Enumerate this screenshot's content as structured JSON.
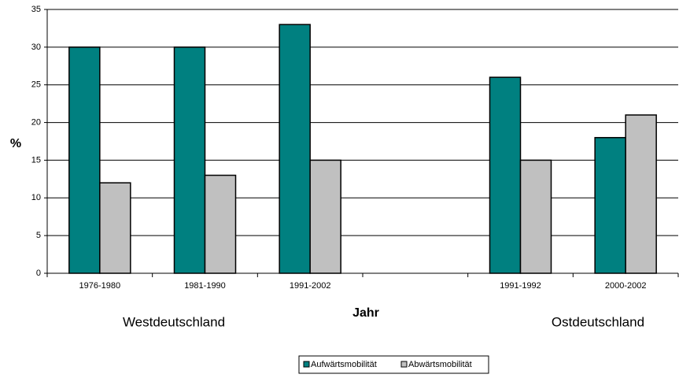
{
  "chart_data": {
    "type": "bar",
    "x_label": "Jahr",
    "y_label": "%",
    "categories": [
      "1976-1980",
      "1981-1990",
      "1991-2002",
      null,
      "1991-1992",
      "2000-2002"
    ],
    "series": [
      {
        "name": "Aufwärtsmobilität",
        "color": "#008080",
        "values": [
          30,
          30,
          33,
          null,
          26,
          18
        ]
      },
      {
        "name": "Abwärtsmobilität",
        "color": "#c0c0c0",
        "values": [
          12,
          13,
          15,
          null,
          15,
          21
        ]
      }
    ],
    "annotations": [
      "Westdeutschland",
      "Ostdeutschland"
    ],
    "ylim": [
      0,
      35
    ],
    "yticks": [
      0,
      5,
      10,
      15,
      20,
      25,
      30,
      35
    ],
    "grid": true,
    "legend": "bottom"
  }
}
